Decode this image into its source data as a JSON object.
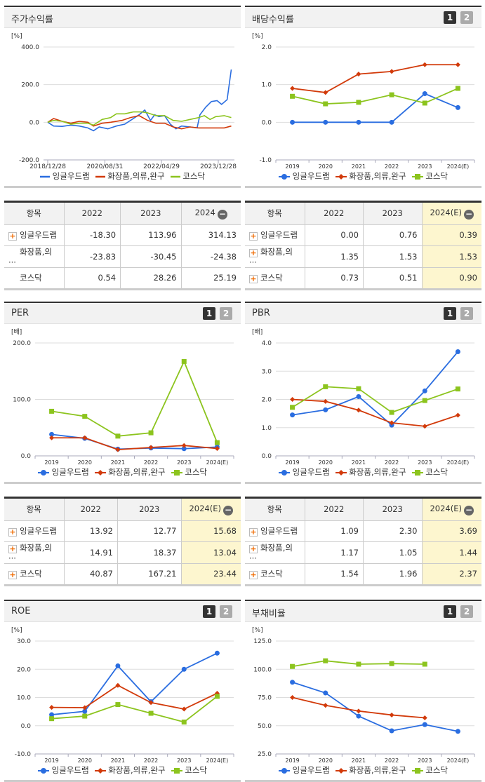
{
  "colors": {
    "blue": "#2a6de0",
    "red": "#d23a0a",
    "green": "#8cc41e"
  },
  "legend": [
    "잉글우드랩",
    "화장품,의류,완구",
    "코스닥"
  ],
  "charts": [
    {
      "id": "c0",
      "title": "주가수익률",
      "unit": "[%]",
      "type": "line",
      "has_buttons": false,
      "xticks": [
        "2018/12/28",
        "2020/08/31",
        "2022/04/29",
        "2023/12/28"
      ],
      "ylim": [
        -200,
        400
      ],
      "yticks": [
        "400.0",
        "200.0",
        "0.0",
        "-200.0"
      ],
      "series": [
        {
          "name": "잉글우드랩",
          "points": [
            [
              "2018-12-28",
              0
            ],
            [
              "2019-03-01",
              -20
            ],
            [
              "2019-06-01",
              -22
            ],
            [
              "2019-09-01",
              -15
            ],
            [
              "2019-12-01",
              -20
            ],
            [
              "2020-03-01",
              -30
            ],
            [
              "2020-05-01",
              -45
            ],
            [
              "2020-07-01",
              -25
            ],
            [
              "2020-10-01",
              -35
            ],
            [
              "2021-01-01",
              -20
            ],
            [
              "2021-04-01",
              -10
            ],
            [
              "2021-06-01",
              10
            ],
            [
              "2021-09-01",
              40
            ],
            [
              "2021-11-01",
              65
            ],
            [
              "2022-01-01",
              10
            ],
            [
              "2022-02-15",
              40
            ],
            [
              "2022-04-01",
              30
            ],
            [
              "2022-06-01",
              35
            ],
            [
              "2022-08-01",
              -10
            ],
            [
              "2022-10-01",
              -35
            ],
            [
              "2022-12-01",
              -20
            ],
            [
              "2023-03-01",
              -25
            ],
            [
              "2023-05-15",
              -30
            ],
            [
              "2023-06-15",
              40
            ],
            [
              "2023-08-15",
              80
            ],
            [
              "2023-10-15",
              110
            ],
            [
              "2023-12-15",
              115
            ],
            [
              "2024-02-01",
              95
            ],
            [
              "2024-04-01",
              120
            ],
            [
              "2024-05-15",
              280
            ]
          ]
        },
        {
          "name": "화장품,의류,완구",
          "points": [
            [
              "2018-12-28",
              0
            ],
            [
              "2019-03-01",
              20
            ],
            [
              "2019-06-01",
              5
            ],
            [
              "2019-09-01",
              -5
            ],
            [
              "2019-12-01",
              5
            ],
            [
              "2020-03-01",
              0
            ],
            [
              "2020-05-01",
              -20
            ],
            [
              "2020-08-01",
              -5
            ],
            [
              "2020-11-01",
              0
            ],
            [
              "2021-03-01",
              10
            ],
            [
              "2021-06-01",
              25
            ],
            [
              "2021-09-01",
              35
            ],
            [
              "2021-12-01",
              10
            ],
            [
              "2022-03-01",
              -5
            ],
            [
              "2022-06-01",
              -5
            ],
            [
              "2022-09-01",
              -25
            ],
            [
              "2022-12-01",
              -35
            ],
            [
              "2023-03-01",
              -25
            ],
            [
              "2023-06-01",
              -30
            ],
            [
              "2023-09-01",
              -30
            ],
            [
              "2023-12-01",
              -30
            ],
            [
              "2024-03-01",
              -30
            ],
            [
              "2024-05-15",
              -20
            ]
          ]
        },
        {
          "name": "코스닥",
          "points": [
            [
              "2018-12-28",
              0
            ],
            [
              "2019-03-01",
              10
            ],
            [
              "2019-06-01",
              5
            ],
            [
              "2019-09-01",
              -10
            ],
            [
              "2019-12-01",
              -5
            ],
            [
              "2020-03-01",
              -5
            ],
            [
              "2020-05-01",
              -15
            ],
            [
              "2020-08-01",
              15
            ],
            [
              "2020-11-01",
              25
            ],
            [
              "2021-01-01",
              45
            ],
            [
              "2021-04-01",
              45
            ],
            [
              "2021-07-01",
              55
            ],
            [
              "2021-10-01",
              55
            ],
            [
              "2021-12-01",
              50
            ],
            [
              "2022-03-01",
              35
            ],
            [
              "2022-06-01",
              35
            ],
            [
              "2022-09-01",
              10
            ],
            [
              "2022-12-01",
              5
            ],
            [
              "2023-03-01",
              15
            ],
            [
              "2023-06-01",
              25
            ],
            [
              "2023-08-01",
              35
            ],
            [
              "2023-10-01",
              15
            ],
            [
              "2023-12-01",
              30
            ],
            [
              "2024-03-01",
              35
            ],
            [
              "2024-05-15",
              25
            ]
          ]
        }
      ]
    },
    {
      "id": "c1",
      "title": "배당수익률",
      "unit": "[%]",
      "type": "category",
      "has_buttons": true,
      "categories": [
        "2019",
        "2020",
        "2021",
        "2022",
        "2023",
        "2024(E)"
      ],
      "ylim": [
        -1,
        2
      ],
      "yticks": [
        "2.0",
        "1.0",
        "0.0",
        "-1.0"
      ],
      "series": [
        {
          "name": "잉글우드랩",
          "values": [
            0,
            0,
            0,
            0,
            0.76,
            0.39
          ]
        },
        {
          "name": "화장품,의류,완구",
          "values": [
            0.9,
            0.79,
            1.28,
            1.35,
            1.53,
            1.53
          ]
        },
        {
          "name": "코스닥",
          "values": [
            0.69,
            0.49,
            0.53,
            0.73,
            0.51,
            0.9
          ]
        }
      ]
    },
    {
      "id": "c2",
      "title": "PER",
      "unit": "[배]",
      "type": "category",
      "has_buttons": true,
      "categories": [
        "2019",
        "2020",
        "2021",
        "2022",
        "2023",
        "2024(E)"
      ],
      "ylim": [
        0,
        200
      ],
      "yticks": [
        "200.0",
        "100.0",
        "0.0"
      ],
      "series": [
        {
          "name": "잉글우드랩",
          "values": [
            38,
            31,
            12,
            13.92,
            12.77,
            15.68
          ]
        },
        {
          "name": "화장품,의류,완구",
          "values": [
            32,
            32,
            11,
            14.91,
            18.37,
            13.04
          ]
        },
        {
          "name": "코스닥",
          "values": [
            79,
            70,
            35,
            40.87,
            167.21,
            23.44
          ]
        }
      ]
    },
    {
      "id": "c3",
      "title": "PBR",
      "unit": "[배]",
      "type": "category",
      "has_buttons": true,
      "categories": [
        "2019",
        "2020",
        "2021",
        "2022",
        "2023",
        "2024(E)"
      ],
      "ylim": [
        0,
        4
      ],
      "yticks": [
        "4.0",
        "3.0",
        "2.0",
        "1.0",
        "0.0"
      ],
      "series": [
        {
          "name": "잉글우드랩",
          "values": [
            1.45,
            1.63,
            2.1,
            1.09,
            2.3,
            3.69
          ]
        },
        {
          "name": "화장품,의류,완구",
          "values": [
            2.0,
            1.93,
            1.62,
            1.17,
            1.05,
            1.44
          ]
        },
        {
          "name": "코스닥",
          "values": [
            1.72,
            2.45,
            2.38,
            1.54,
            1.96,
            2.37
          ]
        }
      ]
    },
    {
      "id": "c4",
      "title": "ROE",
      "unit": "[%]",
      "type": "category",
      "has_buttons": true,
      "categories": [
        "2019",
        "2020",
        "2021",
        "2022",
        "2023",
        "2024(E)"
      ],
      "ylim": [
        -10,
        30
      ],
      "yticks": [
        "30.0",
        "20.0",
        "10.0",
        "0.0",
        "-10.0"
      ],
      "series": [
        {
          "name": "잉글우드랩",
          "values": [
            3.9,
            5.1,
            21.2,
            8.5,
            20.0,
            25.7
          ]
        },
        {
          "name": "화장품,의류,완구",
          "values": [
            6.5,
            6.4,
            14.3,
            8.2,
            5.9,
            11.5
          ]
        },
        {
          "name": "코스닥",
          "values": [
            2.5,
            3.4,
            7.5,
            4.4,
            1.3,
            10.4
          ]
        }
      ]
    },
    {
      "id": "c5",
      "title": "부채비율",
      "unit": "[%]",
      "type": "category",
      "has_buttons": true,
      "categories": [
        "2019",
        "2020",
        "2021",
        "2022",
        "2023",
        "2024(E)"
      ],
      "ylim": [
        25,
        125
      ],
      "yticks": [
        "125.0",
        "100.0",
        "75.0",
        "50.0",
        "25.0"
      ],
      "series": [
        {
          "name": "잉글우드랩",
          "values": [
            88.5,
            79,
            58.5,
            45.5,
            51,
            45
          ]
        },
        {
          "name": "화장품,의류,완구",
          "values": [
            75,
            68,
            63,
            59.5,
            57,
            null
          ]
        },
        {
          "name": "코스닥",
          "values": [
            102.5,
            107.5,
            104.5,
            105,
            104.5,
            null
          ]
        }
      ]
    }
  ],
  "tables": [
    {
      "id": "t0",
      "headers": [
        "항목",
        "2022",
        "2023",
        "2024"
      ],
      "highlight_last": false,
      "rows": [
        {
          "name": "잉글우드랩",
          "plus": true,
          "values": [
            "-18.30",
            "113.96",
            "314.13"
          ]
        },
        {
          "name": "화장품,의···",
          "plus": false,
          "values": [
            "-23.83",
            "-30.45",
            "-24.38"
          ]
        },
        {
          "name": "코스닥",
          "plus": false,
          "values": [
            "0.54",
            "28.26",
            "25.19"
          ]
        }
      ]
    },
    {
      "id": "t1",
      "headers": [
        "항목",
        "2022",
        "2023",
        "2024(E)"
      ],
      "highlight_last": true,
      "rows": [
        {
          "name": "잉글우드랩",
          "plus": true,
          "values": [
            "0.00",
            "0.76",
            "0.39"
          ]
        },
        {
          "name": "화장품,의···",
          "plus": true,
          "values": [
            "1.35",
            "1.53",
            "1.53"
          ]
        },
        {
          "name": "코스닥",
          "plus": true,
          "values": [
            "0.73",
            "0.51",
            "0.90"
          ]
        }
      ]
    },
    {
      "id": "t2",
      "headers": [
        "항목",
        "2022",
        "2023",
        "2024(E)"
      ],
      "highlight_last": true,
      "rows": [
        {
          "name": "잉글우드랩",
          "plus": true,
          "values": [
            "13.92",
            "12.77",
            "15.68"
          ]
        },
        {
          "name": "화장품,의···",
          "plus": true,
          "values": [
            "14.91",
            "18.37",
            "13.04"
          ]
        },
        {
          "name": "코스닥",
          "plus": true,
          "values": [
            "40.87",
            "167.21",
            "23.44"
          ]
        }
      ]
    },
    {
      "id": "t3",
      "headers": [
        "항목",
        "2022",
        "2023",
        "2024(E)"
      ],
      "highlight_last": true,
      "rows": [
        {
          "name": "잉글우드랩",
          "plus": true,
          "values": [
            "1.09",
            "2.30",
            "3.69"
          ]
        },
        {
          "name": "화장품,의···",
          "plus": true,
          "values": [
            "1.17",
            "1.05",
            "1.44"
          ]
        },
        {
          "name": "코스닥",
          "plus": true,
          "values": [
            "1.54",
            "1.96",
            "2.37"
          ]
        }
      ]
    }
  ],
  "buttons": {
    "b1": "1",
    "b2": "2",
    "plus": "+",
    "minus": "−"
  }
}
